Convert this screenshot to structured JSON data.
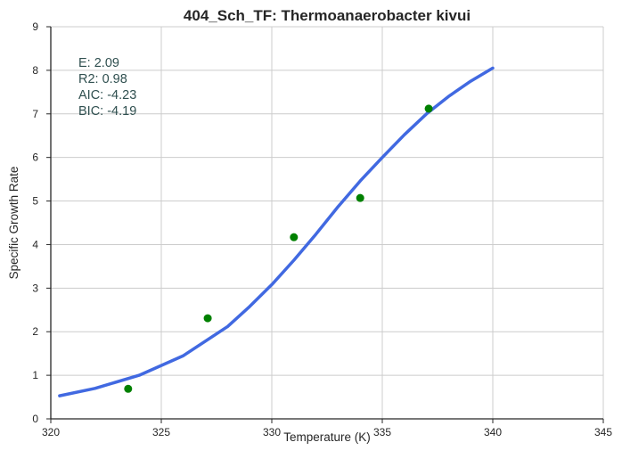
{
  "chart_data": {
    "type": "scatter",
    "title": "404_Sch_TF: Thermoanaerobacter kivui",
    "xlabel": "Temperature (K)",
    "ylabel": "Specific Growth Rate",
    "xlim": [
      320,
      345
    ],
    "ylim": [
      0,
      9
    ],
    "xticks": [
      320,
      325,
      330,
      335,
      340,
      345
    ],
    "yticks": [
      0,
      1,
      2,
      3,
      4,
      5,
      6,
      7,
      8,
      9
    ],
    "grid": true,
    "annotations": [
      "E:  2.09",
      "R2:  0.98",
      "AIC: -4.23",
      "BIC: -4.19"
    ],
    "series": [
      {
        "kind": "points",
        "color": "#008000",
        "x": [
          323.5,
          327.1,
          331.0,
          334.0,
          337.1
        ],
        "y": [
          0.69,
          2.31,
          4.17,
          5.07,
          7.12
        ]
      },
      {
        "kind": "fitted-line",
        "color": "#4169e1",
        "x": [
          320.4,
          322,
          324,
          326,
          328,
          329,
          330,
          331,
          332,
          333,
          334,
          335,
          336,
          337,
          338,
          339,
          340
        ],
        "y": [
          0.53,
          0.7,
          1.0,
          1.45,
          2.12,
          2.58,
          3.08,
          3.64,
          4.24,
          4.87,
          5.46,
          6.0,
          6.52,
          7.0,
          7.4,
          7.75,
          8.05
        ]
      }
    ]
  }
}
